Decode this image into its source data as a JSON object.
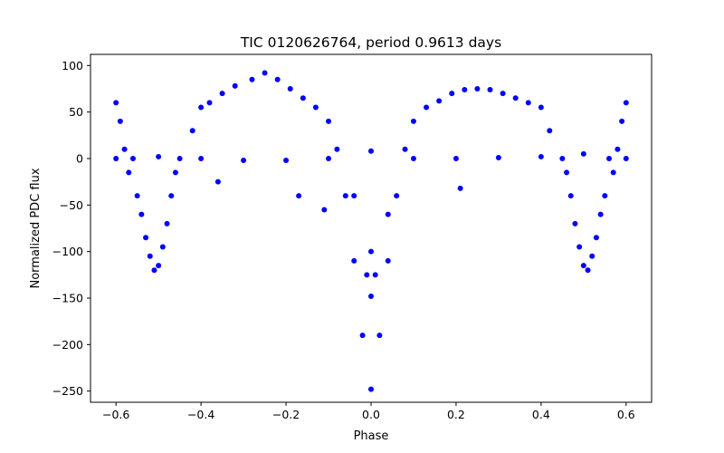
{
  "chart_data": {
    "type": "scatter",
    "title": "TIC 0120626764, period 0.9613 days",
    "xlabel": "Phase",
    "ylabel": "Normalized PDC flux",
    "xlim": [
      -0.66,
      0.66
    ],
    "ylim": [
      -262,
      112
    ],
    "x_ticks": [
      -0.6,
      -0.4,
      -0.2,
      0.0,
      0.2,
      0.4,
      0.6
    ],
    "x_tick_labels": [
      "−0.6",
      "−0.4",
      "−0.2",
      "0.0",
      "0.2",
      "0.4",
      "0.6"
    ],
    "y_ticks": [
      -250,
      -200,
      -150,
      -100,
      -50,
      0,
      50,
      100
    ],
    "y_tick_labels": [
      "−250",
      "−200",
      "−150",
      "−100",
      "−50",
      "0",
      "50",
      "100"
    ],
    "grid": false,
    "series": [
      {
        "name": "flux",
        "color": "#0000ff",
        "points": [
          {
            "x": -0.6,
            "y": 60
          },
          {
            "x": -0.6,
            "y": 0
          },
          {
            "x": -0.59,
            "y": 40
          },
          {
            "x": -0.58,
            "y": 10
          },
          {
            "x": -0.57,
            "y": -15
          },
          {
            "x": -0.56,
            "y": 0
          },
          {
            "x": -0.55,
            "y": -40
          },
          {
            "x": -0.54,
            "y": -60
          },
          {
            "x": -0.53,
            "y": -85
          },
          {
            "x": -0.52,
            "y": -105
          },
          {
            "x": -0.51,
            "y": -120
          },
          {
            "x": -0.5,
            "y": -115
          },
          {
            "x": -0.49,
            "y": -95
          },
          {
            "x": -0.48,
            "y": -70
          },
          {
            "x": -0.47,
            "y": -40
          },
          {
            "x": -0.46,
            "y": -15
          },
          {
            "x": -0.45,
            "y": 0
          },
          {
            "x": -0.42,
            "y": 30
          },
          {
            "x": -0.4,
            "y": 55
          },
          {
            "x": -0.38,
            "y": 60
          },
          {
            "x": -0.35,
            "y": 70
          },
          {
            "x": -0.32,
            "y": 78
          },
          {
            "x": -0.28,
            "y": 85
          },
          {
            "x": -0.25,
            "y": 92
          },
          {
            "x": -0.22,
            "y": 85
          },
          {
            "x": -0.19,
            "y": 75
          },
          {
            "x": -0.16,
            "y": 65
          },
          {
            "x": -0.13,
            "y": 55
          },
          {
            "x": -0.1,
            "y": 40
          },
          {
            "x": -0.08,
            "y": 10
          },
          {
            "x": -0.06,
            "y": -40
          },
          {
            "x": -0.04,
            "y": -110
          },
          {
            "x": -0.02,
            "y": -190
          },
          {
            "x": 0.0,
            "y": -248
          },
          {
            "x": 0.02,
            "y": -190
          },
          {
            "x": 0.04,
            "y": -110
          },
          {
            "x": 0.06,
            "y": -40
          },
          {
            "x": 0.08,
            "y": 10
          },
          {
            "x": 0.1,
            "y": 40
          },
          {
            "x": 0.13,
            "y": 55
          },
          {
            "x": 0.16,
            "y": 62
          },
          {
            "x": 0.19,
            "y": 70
          },
          {
            "x": 0.22,
            "y": 74
          },
          {
            "x": 0.25,
            "y": 75
          },
          {
            "x": 0.28,
            "y": 74
          },
          {
            "x": 0.31,
            "y": 70
          },
          {
            "x": 0.34,
            "y": 65
          },
          {
            "x": 0.37,
            "y": 60
          },
          {
            "x": 0.4,
            "y": 55
          },
          {
            "x": 0.42,
            "y": 30
          },
          {
            "x": 0.45,
            "y": 0
          },
          {
            "x": 0.46,
            "y": -15
          },
          {
            "x": 0.47,
            "y": -40
          },
          {
            "x": 0.48,
            "y": -70
          },
          {
            "x": 0.49,
            "y": -95
          },
          {
            "x": 0.5,
            "y": -115
          },
          {
            "x": 0.51,
            "y": -120
          },
          {
            "x": 0.52,
            "y": -105
          },
          {
            "x": 0.53,
            "y": -85
          },
          {
            "x": 0.54,
            "y": -60
          },
          {
            "x": 0.55,
            "y": -40
          },
          {
            "x": 0.56,
            "y": 0
          },
          {
            "x": 0.57,
            "y": -15
          },
          {
            "x": 0.58,
            "y": 10
          },
          {
            "x": 0.59,
            "y": 40
          },
          {
            "x": 0.6,
            "y": 60
          },
          {
            "x": 0.6,
            "y": 0
          },
          {
            "x": -0.5,
            "y": 2
          },
          {
            "x": -0.4,
            "y": 0
          },
          {
            "x": -0.3,
            "y": -2
          },
          {
            "x": -0.2,
            "y": -2
          },
          {
            "x": -0.1,
            "y": 0
          },
          {
            "x": 0.0,
            "y": 8
          },
          {
            "x": 0.1,
            "y": 0
          },
          {
            "x": 0.2,
            "y": 0
          },
          {
            "x": 0.3,
            "y": 1
          },
          {
            "x": 0.4,
            "y": 2
          },
          {
            "x": 0.5,
            "y": 5
          },
          {
            "x": -0.01,
            "y": -125
          },
          {
            "x": 0.0,
            "y": -148
          },
          {
            "x": 0.01,
            "y": -125
          },
          {
            "x": 0.0,
            "y": -100
          },
          {
            "x": -0.17,
            "y": -40
          },
          {
            "x": -0.11,
            "y": -55
          },
          {
            "x": -0.04,
            "y": -40
          },
          {
            "x": 0.21,
            "y": -32
          },
          {
            "x": -0.36,
            "y": -25
          },
          {
            "x": 0.04,
            "y": -60
          }
        ]
      }
    ]
  }
}
